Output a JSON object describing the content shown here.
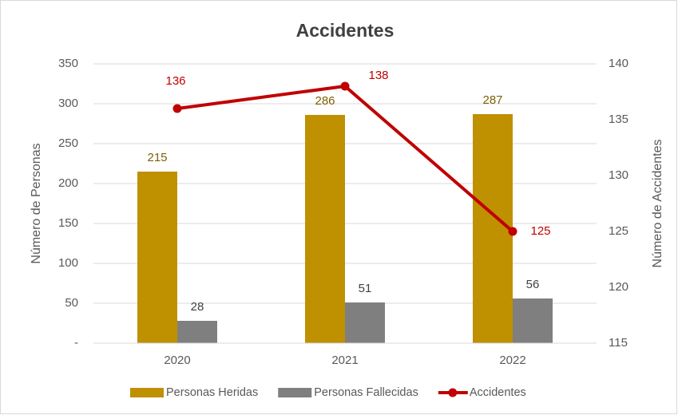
{
  "chart_data": {
    "type": "bar",
    "title": "Accidentes",
    "categories": [
      "2020",
      "2021",
      "2022"
    ],
    "series": [
      {
        "name": "Personas Heridas",
        "color": "#bf9000",
        "values": [
          215,
          286,
          287
        ]
      },
      {
        "name": "Personas Fallecidas",
        "color": "#7f7f7f",
        "values": [
          28,
          51,
          56
        ]
      },
      {
        "name": "Accidentes",
        "type": "line",
        "axis": "y2",
        "color": "#c00000",
        "values": [
          136,
          138,
          125
        ]
      }
    ],
    "ylabel": "Número de Personas",
    "y2label": "Número de Accidentes",
    "ylim": [
      0,
      350
    ],
    "yticks": [
      {
        "value": 0,
        "label": "-"
      },
      50,
      100,
      150,
      200,
      250,
      300,
      350
    ],
    "y2lim": [
      115,
      140
    ],
    "y2ticks": [
      115,
      120,
      125,
      130,
      135,
      140
    ],
    "grid": true,
    "legend": "bottom"
  }
}
